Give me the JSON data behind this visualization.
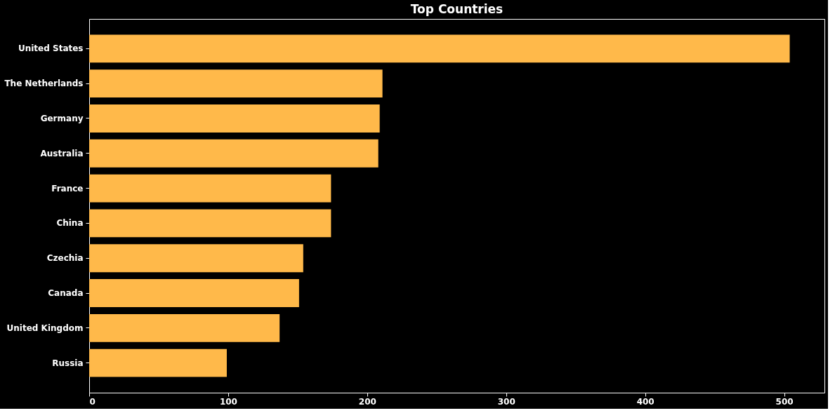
{
  "chart_data": {
    "type": "bar",
    "orientation": "horizontal",
    "title": "Top Countries",
    "categories": [
      "United States",
      "The Netherlands",
      "Germany",
      "Australia",
      "France",
      "China",
      "Czechia",
      "Canada",
      "United Kingdom",
      "Russia"
    ],
    "values": [
      504,
      211,
      209,
      208,
      174,
      174,
      154,
      151,
      137,
      99
    ],
    "color": "#ffb94a",
    "xlim": [
      0,
      529
    ],
    "xticks": [
      0,
      100,
      200,
      300,
      400,
      500
    ],
    "grid": false
  }
}
